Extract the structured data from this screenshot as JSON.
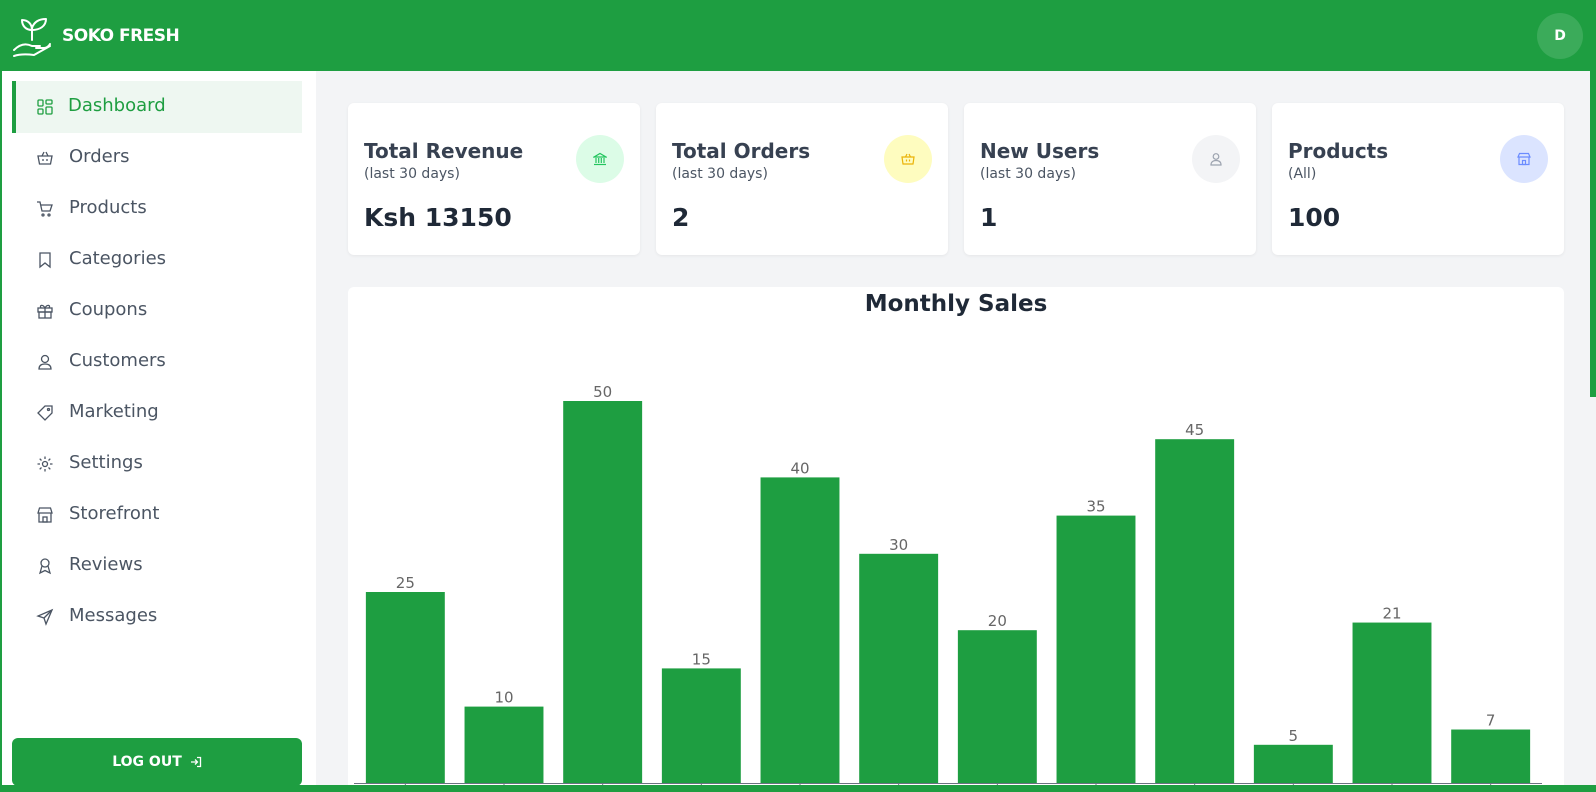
{
  "header": {
    "brand": "SOKO FRESH",
    "avatar_initial": "D"
  },
  "sidebar": {
    "items": [
      {
        "label": "Dashboard",
        "icon": "dashboard-icon",
        "active": true
      },
      {
        "label": "Orders",
        "icon": "basket-icon"
      },
      {
        "label": "Products",
        "icon": "cart-icon"
      },
      {
        "label": "Categories",
        "icon": "bookmark-icon"
      },
      {
        "label": "Coupons",
        "icon": "gift-icon"
      },
      {
        "label": "Customers",
        "icon": "user-icon"
      },
      {
        "label": "Marketing",
        "icon": "tag-icon"
      },
      {
        "label": "Settings",
        "icon": "gear-icon"
      },
      {
        "label": "Storefront",
        "icon": "store-icon"
      },
      {
        "label": "Reviews",
        "icon": "ribbon-icon"
      },
      {
        "label": "Messages",
        "icon": "send-icon"
      }
    ],
    "logout_label": "LOG OUT"
  },
  "cards": [
    {
      "title": "Total Revenue",
      "subtitle": "(last 30 days)",
      "value": "Ksh 13150",
      "icon": "bank-icon",
      "icon_bg": "#dcfce7",
      "icon_color": "#22c55e"
    },
    {
      "title": "Total Orders",
      "subtitle": "(last 30 days)",
      "value": "2",
      "icon": "basket-icon",
      "icon_bg": "#fefcbf",
      "icon_color": "#eab308"
    },
    {
      "title": "New Users",
      "subtitle": "(last 30 days)",
      "value": "1",
      "icon": "user-icon",
      "icon_bg": "#f3f4f6",
      "icon_color": "#9ca3af"
    },
    {
      "title": "Products",
      "subtitle": "(All)",
      "value": "100",
      "icon": "store-icon",
      "icon_bg": "#dbe4ff",
      "icon_color": "#6b8cff"
    }
  ],
  "colors": {
    "brand": "#1e9e41"
  },
  "chart_data": {
    "type": "bar",
    "title": "Monthly Sales",
    "values": [
      25,
      10,
      50,
      15,
      40,
      30,
      20,
      35,
      45,
      5,
      21,
      7
    ],
    "data_labels": true,
    "ylim": [
      0,
      50
    ],
    "color": "#1e9e41"
  }
}
